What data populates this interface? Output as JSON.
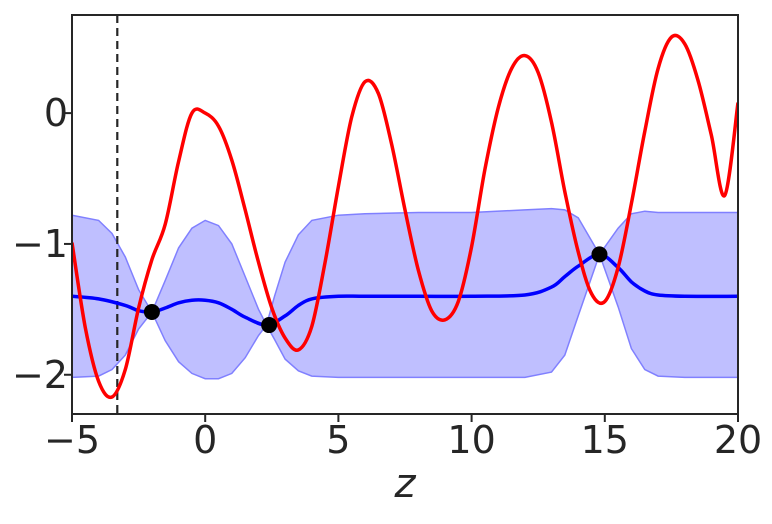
{
  "chart_data": {
    "type": "line",
    "title": "",
    "xlabel": "z",
    "ylabel": "",
    "xlim": [
      -5,
      20
    ],
    "ylim": [
      -2.3,
      0.75
    ],
    "grid": false,
    "x_ticks": [
      -5,
      0,
      5,
      10,
      15,
      20
    ],
    "x_tick_labels": [
      "−5",
      "0",
      "5",
      "10",
      "15",
      "20"
    ],
    "y_ticks": [
      0,
      -1,
      -2
    ],
    "y_tick_labels": [
      "0",
      "−1",
      "−2"
    ],
    "colors": {
      "objective": "#ff0000",
      "mean": "#0000ff",
      "band": "#8080ff",
      "points": "#000000",
      "vline": "#262626",
      "axes": "#262626"
    },
    "objective_curve": {
      "description_of_values": "y = -0.8 + cos(z) * (0.8 + 0.035*z) sampled",
      "x": [
        -5,
        -4.5,
        -4,
        -3.5,
        -3,
        -2.5,
        -2,
        -1.5,
        -1,
        -0.5,
        0,
        0.5,
        1,
        1.5,
        2,
        2.5,
        3,
        3.5,
        4,
        4.5,
        5,
        5.5,
        6,
        6.5,
        7,
        7.5,
        8,
        8.5,
        9,
        9.5,
        10,
        10.5,
        11,
        11.5,
        12,
        12.5,
        13,
        13.5,
        14,
        14.5,
        15,
        15.5,
        16,
        16.5,
        17,
        17.5,
        18,
        18.5,
        19,
        19.5,
        20
      ],
      "y": [
        -0.99,
        -1.64,
        -2.05,
        -2.17,
        -1.96,
        -1.49,
        -1.12,
        -0.85,
        -0.37,
        0.0,
        0.0,
        -0.1,
        -0.36,
        -0.74,
        -1.14,
        -1.49,
        -1.72,
        -1.81,
        -1.63,
        -1.14,
        -0.56,
        -0.03,
        0.24,
        0.15,
        -0.24,
        -0.74,
        -1.2,
        -1.51,
        -1.58,
        -1.44,
        -1.02,
        -0.43,
        0.04,
        0.34,
        0.44,
        0.31,
        -0.07,
        -0.6,
        -1.06,
        -1.38,
        -1.44,
        -1.18,
        -0.69,
        -0.14,
        0.34,
        0.58,
        0.53,
        0.25,
        -0.17,
        -0.63,
        0.08
      ]
    },
    "gp_mean": {
      "x": [
        -5,
        -4,
        -3,
        -2.5,
        -2.0,
        -1.5,
        -1,
        -0.5,
        0,
        0.5,
        1,
        1.5,
        2.3,
        3,
        3.5,
        4,
        5,
        6,
        8,
        10,
        12,
        13,
        13.5,
        14,
        14.8,
        15.5,
        16,
        16.5,
        17,
        18,
        20
      ],
      "y": [
        -1.4,
        -1.42,
        -1.47,
        -1.51,
        -1.52,
        -1.49,
        -1.45,
        -1.43,
        -1.43,
        -1.45,
        -1.5,
        -1.56,
        -1.62,
        -1.55,
        -1.47,
        -1.42,
        -1.4,
        -1.4,
        -1.4,
        -1.4,
        -1.39,
        -1.33,
        -1.25,
        -1.17,
        -1.08,
        -1.18,
        -1.29,
        -1.36,
        -1.39,
        -1.4,
        -1.4
      ]
    },
    "gp_band": {
      "x": [
        -5,
        -4,
        -3.5,
        -3,
        -2.5,
        -2.0,
        -1.5,
        -1,
        -0.5,
        0,
        0.5,
        1,
        1.5,
        2.0,
        2.3,
        2.6,
        3,
        3.5,
        4,
        5,
        6,
        8,
        10,
        12,
        13,
        13.5,
        14,
        14.8,
        15.5,
        16,
        16.5,
        17,
        18,
        20
      ],
      "upper": [
        -0.78,
        -0.82,
        -0.92,
        -1.1,
        -1.35,
        -1.52,
        -1.28,
        -1.03,
        -0.88,
        -0.82,
        -0.86,
        -1.0,
        -1.25,
        -1.5,
        -1.62,
        -1.4,
        -1.14,
        -0.93,
        -0.82,
        -0.78,
        -0.77,
        -0.76,
        -0.76,
        -0.74,
        -0.73,
        -0.74,
        -0.8,
        -1.08,
        -0.88,
        -0.77,
        -0.75,
        -0.76,
        -0.76,
        -0.76
      ],
      "lower": [
        -2.02,
        -2.01,
        -1.96,
        -1.85,
        -1.65,
        -1.52,
        -1.74,
        -1.9,
        -1.99,
        -2.03,
        -2.03,
        -1.99,
        -1.87,
        -1.7,
        -1.62,
        -1.73,
        -1.88,
        -1.97,
        -2.01,
        -2.02,
        -2.02,
        -2.02,
        -2.02,
        -2.02,
        -1.98,
        -1.85,
        -1.55,
        -1.08,
        -1.48,
        -1.8,
        -1.96,
        -2.01,
        -2.02,
        -2.02
      ]
    },
    "observations": {
      "x": [
        -2.0,
        2.4,
        14.8
      ],
      "y": [
        -1.52,
        -1.62,
        -1.08
      ]
    },
    "vline_x": -3.3
  }
}
